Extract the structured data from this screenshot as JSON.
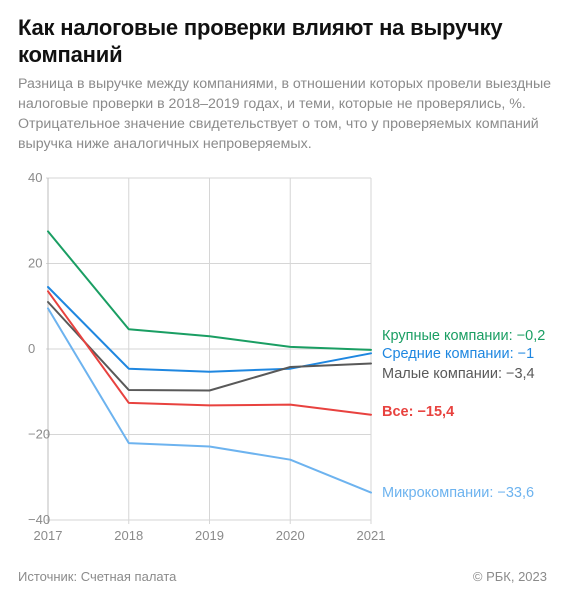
{
  "title": "Как налоговые проверки влияют на выручку компаний",
  "subtitle": "Разница в выручке между компаниями, в отношении которых провели выездные налоговые проверки в 2018–2019 годах, и теми, которые не проверялись, %. Отрицательное значение свидетельствует о том, что у проверяемых компаний выручка ниже аналогичных непроверяемых.",
  "source": "Источник: Счетная палата",
  "copyright": "© РБК, 2023",
  "chart_data": {
    "type": "line",
    "x": [
      "2017",
      "2018",
      "2019",
      "2020",
      "2021"
    ],
    "ylim": [
      -40,
      40
    ],
    "yticks": [
      "40",
      "20",
      "0",
      "−20",
      "−40"
    ],
    "grid": true,
    "series": [
      {
        "name": "Крупные компании",
        "label": "Крупные компании: −0,2",
        "color": "#1a9e63",
        "values": [
          27.5,
          4.6,
          3.0,
          0.5,
          -0.2
        ]
      },
      {
        "name": "Средние компании",
        "label": "Средние компании: −1",
        "color": "#1f87e0",
        "values": [
          14.5,
          -4.6,
          -5.3,
          -4.6,
          -1.0
        ]
      },
      {
        "name": "Малые компании",
        "label": "Малые компании: −3,4",
        "color": "#595959",
        "values": [
          11.0,
          -9.6,
          -9.7,
          -4.2,
          -3.4
        ]
      },
      {
        "name": "Все",
        "label": "Все: −15,4",
        "color": "#e8423f",
        "values": [
          13.5,
          -12.6,
          -13.2,
          -13.0,
          -15.4
        ]
      },
      {
        "name": "Микрокомпании",
        "label": "Микрокомпании: −33,6",
        "color": "#6db3ef",
        "values": [
          9.5,
          -22.0,
          -22.8,
          -25.9,
          -33.6
        ]
      }
    ]
  }
}
